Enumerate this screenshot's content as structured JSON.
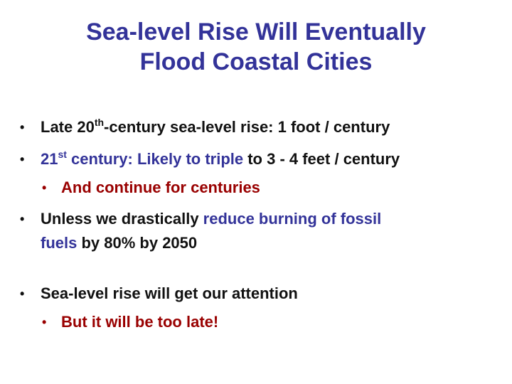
{
  "slide": {
    "title_line1": "Sea-level Rise Will Eventually",
    "title_line2": "Flood Coastal Cities",
    "bullet_char": "•",
    "b1": {
      "pre": "Late 20",
      "sup": "th",
      "post": "-century sea-level rise: 1 foot / century"
    },
    "b2": {
      "pre": "21",
      "sup": "st",
      "blue": " century: Likely to triple",
      "post": " to 3 - 4 feet / century"
    },
    "b2_sub": "And continue for centuries",
    "b3": {
      "line1_pre": "Unless we drastically ",
      "line1_blue": "reduce burning of fossil",
      "line2_blue": "fuels",
      "line2_post": " by 80% by 2050"
    },
    "b4": "Sea-level rise will get our attention",
    "b4_sub": "But it will be too late!"
  },
  "colors": {
    "title": "#333399",
    "body_text": "#111111",
    "emphasis_blue": "#333399",
    "emphasis_red": "#990000"
  }
}
